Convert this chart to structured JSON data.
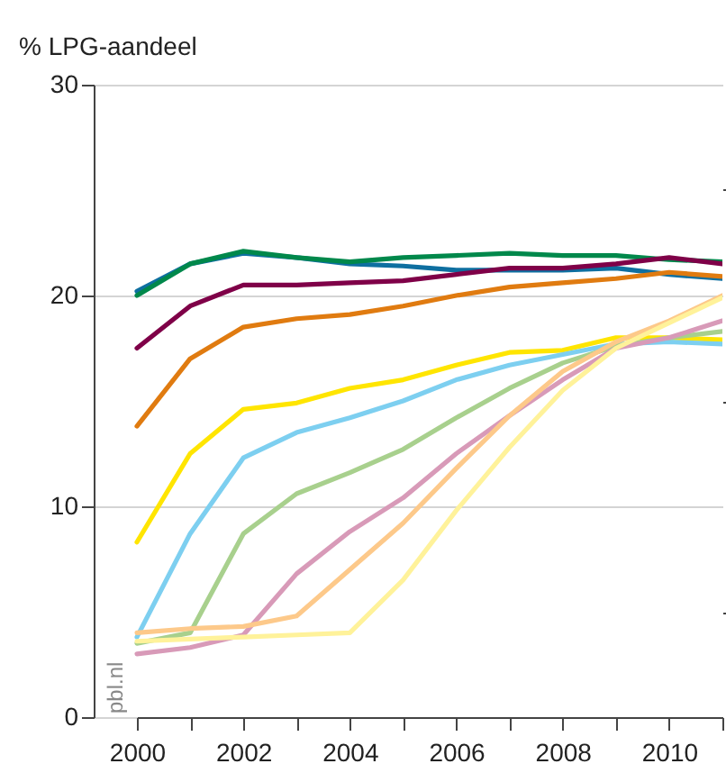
{
  "chart_data": {
    "type": "line",
    "ylabel": "% LPG-aandeel",
    "x": [
      2000,
      2001,
      2002,
      2003,
      2004,
      2005,
      2006,
      2007,
      2008,
      2009,
      2010,
      2011
    ],
    "xlim": [
      2000,
      2011
    ],
    "xticks": [
      2000,
      {
        "value": 2001,
        "label": null
      },
      2002,
      {
        "value": 2003,
        "label": null
      },
      2004,
      {
        "value": 2005,
        "label": null
      },
      2006,
      {
        "value": 2007,
        "label": null
      },
      2008,
      {
        "value": 2009,
        "label": null
      },
      2010,
      {
        "value": 2011,
        "label": null
      }
    ],
    "ylim": [
      0,
      30
    ],
    "yticks": [
      0,
      {
        "value": 5,
        "label": null
      },
      10,
      {
        "value": 15,
        "label": null
      },
      20,
      {
        "value": 25,
        "label": null
      },
      30
    ],
    "grid": "y",
    "legend": false,
    "marker": "none",
    "line_style": "solid",
    "annotations": [
      "pbl.nl"
    ],
    "series": [
      {
        "color": "#0e6fa0",
        "values": [
          20.2,
          21.5,
          22.0,
          21.8,
          21.5,
          21.4,
          21.2,
          21.2,
          21.2,
          21.3,
          21.0,
          20.8
        ]
      },
      {
        "color": "#00884b",
        "values": [
          20.0,
          21.5,
          22.1,
          21.8,
          21.6,
          21.8,
          21.9,
          22.0,
          21.9,
          21.9,
          21.7,
          21.6
        ]
      },
      {
        "color": "#7f0048",
        "values": [
          17.5,
          19.5,
          20.5,
          20.5,
          20.6,
          20.7,
          21.0,
          21.3,
          21.3,
          21.5,
          21.8,
          21.5
        ]
      },
      {
        "color": "#e07b10",
        "values": [
          13.8,
          17.0,
          18.5,
          18.9,
          19.1,
          19.5,
          20.0,
          20.4,
          20.6,
          20.8,
          21.1,
          20.9
        ]
      },
      {
        "color": "#ffe500",
        "values": [
          8.3,
          12.5,
          14.6,
          14.9,
          15.6,
          16.0,
          16.7,
          17.3,
          17.4,
          18.0,
          18.0,
          17.9
        ]
      },
      {
        "color": "#7dcff0",
        "values": [
          3.8,
          8.7,
          12.3,
          13.5,
          14.2,
          15.0,
          16.0,
          16.7,
          17.2,
          17.7,
          17.8,
          17.7
        ]
      },
      {
        "color": "#a8d08d",
        "values": [
          3.5,
          4.0,
          8.7,
          10.6,
          11.6,
          12.7,
          14.2,
          15.6,
          16.8,
          17.6,
          18.0,
          18.3
        ]
      },
      {
        "color": "#d89ab8",
        "values": [
          3.0,
          3.3,
          3.9,
          6.8,
          8.8,
          10.4,
          12.5,
          14.3,
          16.0,
          17.5,
          18.0,
          18.8
        ]
      },
      {
        "color": "#fdc98a",
        "values": [
          4.0,
          4.2,
          4.3,
          4.8,
          7.0,
          9.2,
          11.8,
          14.3,
          16.4,
          17.8,
          18.8,
          20.0
        ]
      },
      {
        "color": "#fff29a",
        "values": [
          3.6,
          3.7,
          3.8,
          3.9,
          4.0,
          6.5,
          9.8,
          12.8,
          15.5,
          17.5,
          18.7,
          19.9
        ]
      }
    ]
  }
}
